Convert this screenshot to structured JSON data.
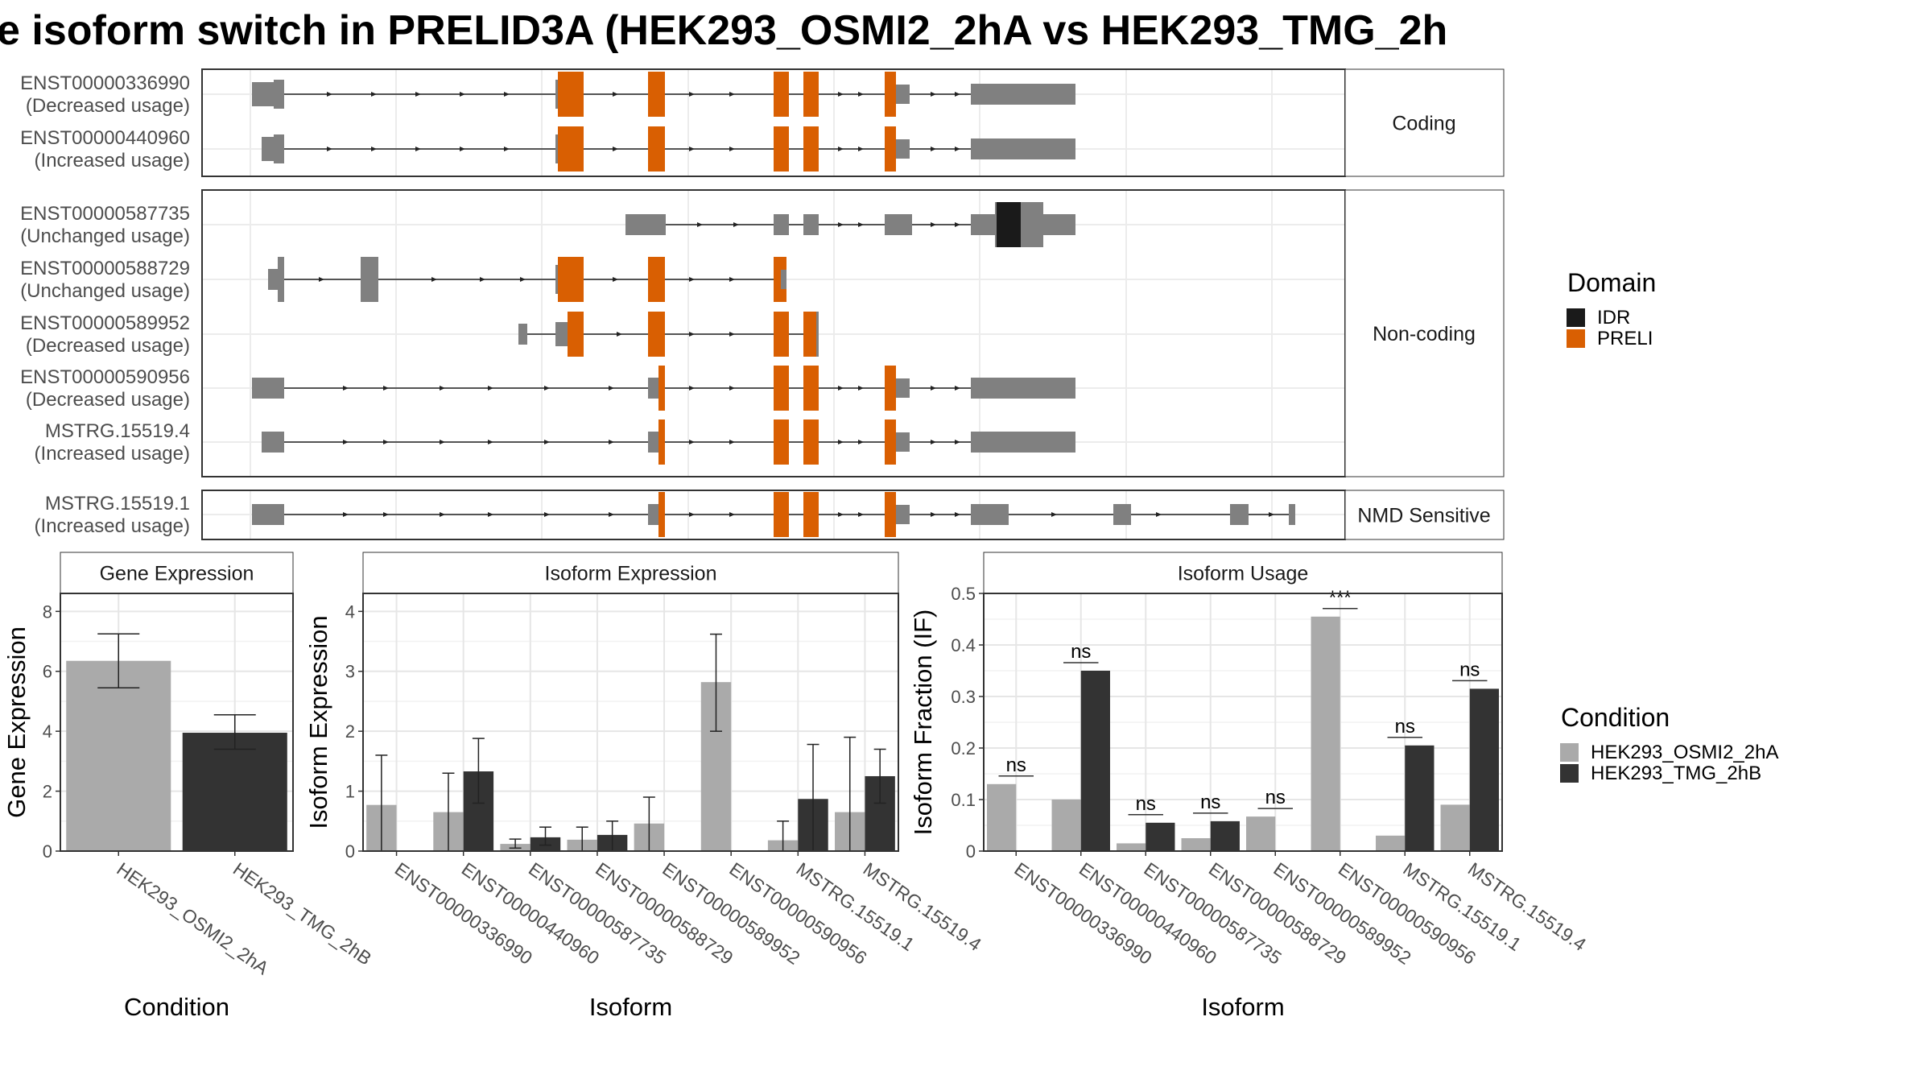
{
  "title": "e isoform switch in PRELID3A (HEK293_OSMI2_2hA vs HEK293_TMG_2h",
  "colors": {
    "exon": "#808080",
    "PRELI": "#D95F02",
    "IDR": "#1A1A1A",
    "cond1": "#AAAAAA",
    "cond2": "#333333"
  },
  "transcript_facets": [
    {
      "label": "Coding",
      "tracks": [
        {
          "id": "ENST00000336990",
          "usage": "(Decreased usage)"
        },
        {
          "id": "ENST00000440960",
          "usage": "(Increased usage)"
        }
      ]
    },
    {
      "label": "Non-coding",
      "tracks": [
        {
          "id": "ENST00000587735",
          "usage": "(Unchanged usage)"
        },
        {
          "id": "ENST00000588729",
          "usage": "(Unchanged usage)"
        },
        {
          "id": "ENST00000589952",
          "usage": "(Decreased usage)"
        },
        {
          "id": "ENST00000590956",
          "usage": "(Decreased usage)"
        },
        {
          "id": "MSTRG.15519.4",
          "usage": "(Increased usage)"
        }
      ]
    },
    {
      "label": "NMD Sensitive",
      "tracks": [
        {
          "id": "MSTRG.15519.1",
          "usage": "(Increased usage)"
        }
      ]
    }
  ],
  "legends": {
    "domain": {
      "title": "Domain",
      "items": [
        {
          "label": "IDR",
          "color": "#1A1A1A"
        },
        {
          "label": "PRELI",
          "color": "#D95F02"
        }
      ]
    },
    "condition": {
      "title": "Condition",
      "items": [
        {
          "label": "HEK293_OSMI2_2hA",
          "color": "#AAAAAA"
        },
        {
          "label": "HEK293_TMG_2hB",
          "color": "#333333"
        }
      ]
    }
  },
  "chart_data": [
    {
      "type": "bar",
      "title": "Gene Expression",
      "xlabel": "Condition",
      "ylabel": "Gene Expression",
      "ylim": [
        0,
        8.6
      ],
      "yticks": [
        0,
        2,
        4,
        6,
        8
      ],
      "categories": [
        "HEK293_OSMI2_2hA",
        "HEK293_TMG_2hB"
      ],
      "values": [
        6.35,
        3.95
      ],
      "errors": [
        [
          5.45,
          7.25
        ],
        [
          3.4,
          4.55
        ]
      ]
    },
    {
      "type": "bar",
      "title": "Isoform Expression",
      "xlabel": "Isoform",
      "ylabel": "Isoform Expression",
      "ylim": [
        0,
        4.3
      ],
      "yticks": [
        0,
        1,
        2,
        3,
        4
      ],
      "categories": [
        "ENST00000336990",
        "ENST00000440960",
        "ENST00000587735",
        "ENST00000588729",
        "ENST00000589952",
        "ENST00000590956",
        "MSTRG.15519.1",
        "MSTRG.15519.4"
      ],
      "series": [
        {
          "name": "HEK293_OSMI2_2hA",
          "values": [
            0.77,
            0.65,
            0.12,
            0.19,
            0.46,
            2.82,
            0.18,
            0.65
          ],
          "errors": [
            [
              0,
              1.6
            ],
            [
              0,
              1.3
            ],
            [
              0.05,
              0.2
            ],
            [
              0,
              0.4
            ],
            [
              0,
              0.9
            ],
            [
              2.0,
              3.62
            ],
            [
              0,
              0.5
            ],
            [
              0,
              1.9
            ]
          ]
        },
        {
          "name": "HEK293_TMG_2hB",
          "values": [
            0,
            1.33,
            0.23,
            0.27,
            0,
            0,
            0.87,
            1.25
          ],
          "errors": [
            [
              0,
              0
            ],
            [
              0.8,
              1.88
            ],
            [
              0.1,
              0.4
            ],
            [
              0,
              0.5
            ],
            [
              0,
              0
            ],
            [
              0,
              0
            ],
            [
              0,
              1.78
            ],
            [
              0.8,
              1.7
            ]
          ]
        }
      ]
    },
    {
      "type": "bar",
      "title": "Isoform Usage",
      "xlabel": "Isoform",
      "ylabel": "Isoform Fraction (IF)",
      "ylim": [
        0,
        0.5
      ],
      "yticks": [
        0.0,
        0.1,
        0.2,
        0.3,
        0.4,
        0.5
      ],
      "categories": [
        "ENST00000336990",
        "ENST00000440960",
        "ENST00000587735",
        "ENST00000588729",
        "ENST00000589952",
        "ENST00000590956",
        "MSTRG.15519.1",
        "MSTRG.15519.4"
      ],
      "series": [
        {
          "name": "HEK293_OSMI2_2hA",
          "values": [
            0.13,
            0.1,
            0.015,
            0.025,
            0.067,
            0.455,
            0.03,
            0.09
          ]
        },
        {
          "name": "HEK293_TMG_2hB",
          "values": [
            0,
            0.35,
            0.055,
            0.058,
            0,
            0,
            0.205,
            0.315
          ]
        }
      ],
      "annotations": [
        "ns",
        "ns",
        "ns",
        "ns",
        "ns",
        "***",
        "ns",
        "ns"
      ]
    }
  ]
}
